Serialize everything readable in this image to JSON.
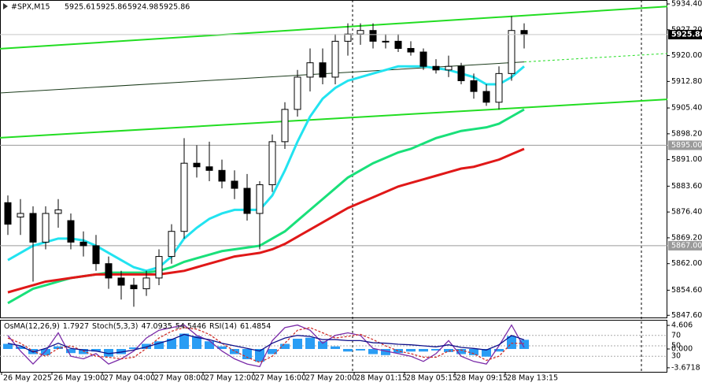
{
  "chart_data": {
    "type": "candlestick",
    "title": "#SPX,M15",
    "header_values": [
      "5925.61",
      "5925.86",
      "5924.98",
      "5925.86"
    ],
    "categories": [
      "26 May 2025",
      null,
      null,
      null,
      "26 May 19:00",
      null,
      null,
      null,
      "27 May 04:00",
      null,
      null,
      null,
      "27 May 08:00",
      null,
      null,
      null,
      "27 May 12:00",
      null,
      null,
      null,
      "27 May 16:00",
      null,
      null,
      null,
      "27 May 20:00",
      null,
      null,
      null,
      "28 May 01:15",
      null,
      null,
      null,
      "28 May 05:15",
      null,
      null,
      null,
      "28 May 09:15",
      null,
      null,
      null,
      "28 May 13:15",
      null
    ],
    "open": [
      5879,
      5875,
      5876,
      5868,
      5876,
      5874,
      5868,
      5867,
      5862,
      5858,
      5856,
      5855,
      5858,
      5864,
      5871,
      5890,
      5889,
      5888,
      5885,
      5883,
      5876,
      5884,
      5896,
      5905,
      5914,
      5918,
      5914,
      5924,
      5926,
      5927,
      5924,
      5924,
      5922,
      5921,
      5917,
      5916,
      5917,
      5913,
      5910,
      5907,
      5915,
      5927
    ],
    "high": [
      5881,
      5880,
      5878,
      5878,
      5880,
      5876,
      5871,
      5870,
      5864,
      5860,
      5858,
      5860,
      5866,
      5873,
      5897,
      5895,
      5896,
      5891,
      5888,
      5887,
      5885,
      5898,
      5907,
      5916,
      5922,
      5922,
      5926,
      5929,
      5929,
      5929,
      5926,
      5926,
      5924,
      5922,
      5919,
      5920,
      5918,
      5915,
      5912,
      5917,
      5931,
      5929
    ],
    "low": [
      5870,
      5870,
      5857,
      5866,
      5872,
      5866,
      5864,
      5860,
      5855,
      5852,
      5850,
      5853,
      5856,
      5862,
      5869,
      5886,
      5885,
      5883,
      5880,
      5874,
      5866,
      5882,
      5894,
      5903,
      5910,
      5912,
      5912,
      5920,
      5923,
      5922,
      5922,
      5921,
      5920,
      5916,
      5915,
      5914,
      5912,
      5908,
      5906,
      5905,
      5913,
      5922
    ],
    "close": [
      5873,
      5876,
      5868,
      5876,
      5877,
      5868,
      5867,
      5862,
      5858,
      5856,
      5855,
      5858,
      5864,
      5871,
      5890,
      5889,
      5888,
      5885,
      5883,
      5876,
      5884,
      5896,
      5905,
      5914,
      5918,
      5914,
      5924,
      5926,
      5927,
      5924,
      5924,
      5922,
      5921,
      5917,
      5916,
      5917,
      5913,
      5910,
      5907,
      5915,
      5927,
      5925.86
    ],
    "series": [
      {
        "color": "#22e3f0",
        "values": [
          5863,
          5865,
          5867,
          5868,
          5869,
          5869,
          5868.5,
          5867,
          5865,
          5863,
          5861,
          5860,
          5861,
          5864,
          5869,
          5872,
          5874.5,
          5876,
          5877,
          5877,
          5877,
          5881,
          5888,
          5896,
          5903,
          5908,
          5911,
          5913,
          5914,
          5915,
          5916,
          5917,
          5917,
          5917,
          5916.5,
          5916,
          5915,
          5914,
          5912,
          5912,
          5914,
          5917
        ]
      },
      {
        "color": "#19e07a",
        "values": [
          5851,
          5853,
          5855,
          5856,
          5857,
          5858,
          5858.5,
          5859,
          5859.5,
          5859.5,
          5859.5,
          5859.5,
          5860,
          5861,
          5862.5,
          5863.5,
          5864.5,
          5865.5,
          5866,
          5866.5,
          5867,
          5869,
          5871,
          5874,
          5877,
          5880,
          5883,
          5886,
          5888,
          5890,
          5891.5,
          5893,
          5894,
          5895.5,
          5897,
          5898,
          5899,
          5899.5,
          5900,
          5901,
          5903,
          5905
        ]
      },
      {
        "color": "#e01818",
        "values": [
          5854,
          5855,
          5856,
          5857,
          5857.5,
          5858,
          5858.5,
          5859,
          5859,
          5859,
          5859,
          5859,
          5859,
          5859.5,
          5860,
          5861,
          5862,
          5863,
          5864,
          5864.5,
          5865,
          5866,
          5867.5,
          5869.5,
          5871.5,
          5873.5,
          5875.5,
          5877.5,
          5879,
          5880.5,
          5882,
          5883.5,
          5884.5,
          5885.5,
          5886.5,
          5887.5,
          5888.5,
          5889,
          5890,
          5891,
          5892.5,
          5894
        ]
      }
    ],
    "trendlines": [
      {
        "color": "#22dd22",
        "values": [
          5921.9,
          5933.7
        ]
      },
      {
        "color": "#22dd22",
        "values": [
          5897.1,
          5907.8
        ]
      },
      {
        "color": "#1a3a1a",
        "values": [
          5909.6,
          5920.6
        ]
      }
    ],
    "levels": [
      {
        "value": 5895,
        "label": "5895.00"
      },
      {
        "value": 5867,
        "label": "5867.00"
      }
    ],
    "current_price": {
      "value": 5925.86,
      "label": "5925.86"
    },
    "ylim": [
      5847.0,
      5935.5
    ],
    "yticks": [
      {
        "value": 5934.4,
        "label": "5934.40"
      },
      {
        "value": 5927.2,
        "label": "5927.20"
      },
      {
        "value": 5920,
        "label": "5920.00"
      },
      {
        "value": 5912.8,
        "label": "5912.80"
      },
      {
        "value": 5905.4,
        "label": "5905.40"
      },
      {
        "value": 5898.2,
        "label": "5898.20"
      },
      {
        "value": 5891,
        "label": "5891.00"
      },
      {
        "value": 5883.6,
        "label": "5883.60"
      },
      {
        "value": 5876.4,
        "label": "5876.40"
      },
      {
        "value": 5869.2,
        "label": "5869.20"
      },
      {
        "value": 5862,
        "label": "5862.00"
      },
      {
        "value": 5854.6,
        "label": "5854.60"
      },
      {
        "value": 5847.6,
        "label": "5847.60"
      }
    ],
    "oscillator": {
      "osma": {
        "name": "OsMA(12,26,9)",
        "color": "#2a9df4",
        "values": [
          1.0,
          0.5,
          -1.0,
          -1.2,
          0.5,
          -0.8,
          -1.0,
          -0.5,
          -1.5,
          -1.0,
          0.3,
          1.0,
          1.5,
          2.0,
          3.0,
          2.5,
          1.5,
          0.5,
          -1.0,
          -2.0,
          -2.5,
          -1.0,
          1.0,
          2.0,
          2.2,
          1.5,
          0.5,
          -0.5,
          -0.3,
          -1.0,
          -1.2,
          -0.8,
          -0.5,
          -0.5,
          -0.3,
          -0.6,
          -1.0,
          -1.2,
          -1.5,
          -0.5,
          2.5,
          1.7927
        ],
        "ylim": [
          -4.46,
          5.69
        ],
        "yticks": [
          {
            "value": 4.606,
            "label": "4.606"
          },
          {
            "value": 0,
            "label": "0.000"
          },
          {
            "value": -3.6718,
            "label": "-3.6718"
          }
        ]
      },
      "stoch": {
        "name": "Stoch(5,3,3)",
        "color": "#7a2aa8",
        "signal_color": "#d0302a",
        "main": [
          70,
          40,
          15,
          40,
          75,
          30,
          25,
          35,
          15,
          25,
          40,
          65,
          80,
          85,
          90,
          70,
          60,
          40,
          25,
          15,
          10,
          60,
          85,
          90,
          80,
          55,
          70,
          75,
          70,
          45,
          40,
          35,
          30,
          20,
          35,
          60,
          30,
          20,
          15,
          50,
          90,
          47.0935
        ],
        "signal": [
          65,
          55,
          40,
          30,
          45,
          50,
          40,
          30,
          28,
          25,
          28,
          45,
          65,
          78,
          85,
          82,
          72,
          55,
          40,
          28,
          18,
          30,
          55,
          80,
          85,
          75,
          65,
          68,
          72,
          62,
          50,
          40,
          35,
          28,
          28,
          40,
          42,
          35,
          22,
          30,
          55,
          54.5446
        ]
      },
      "rsi": {
        "name": "RSI(14)",
        "color": "#10108a",
        "values": [
          55,
          50,
          38,
          45,
          55,
          45,
          42,
          40,
          35,
          38,
          42,
          48,
          55,
          62,
          72,
          66,
          62,
          55,
          50,
          45,
          40,
          55,
          65,
          70,
          68,
          62,
          62,
          60,
          60,
          56,
          55,
          53,
          52,
          50,
          48,
          52,
          47,
          45,
          42,
          52,
          70,
          61.4854
        ]
      },
      "ylim": [
        0,
        100
      ],
      "yticks": [
        30,
        50,
        70
      ]
    }
  }
}
